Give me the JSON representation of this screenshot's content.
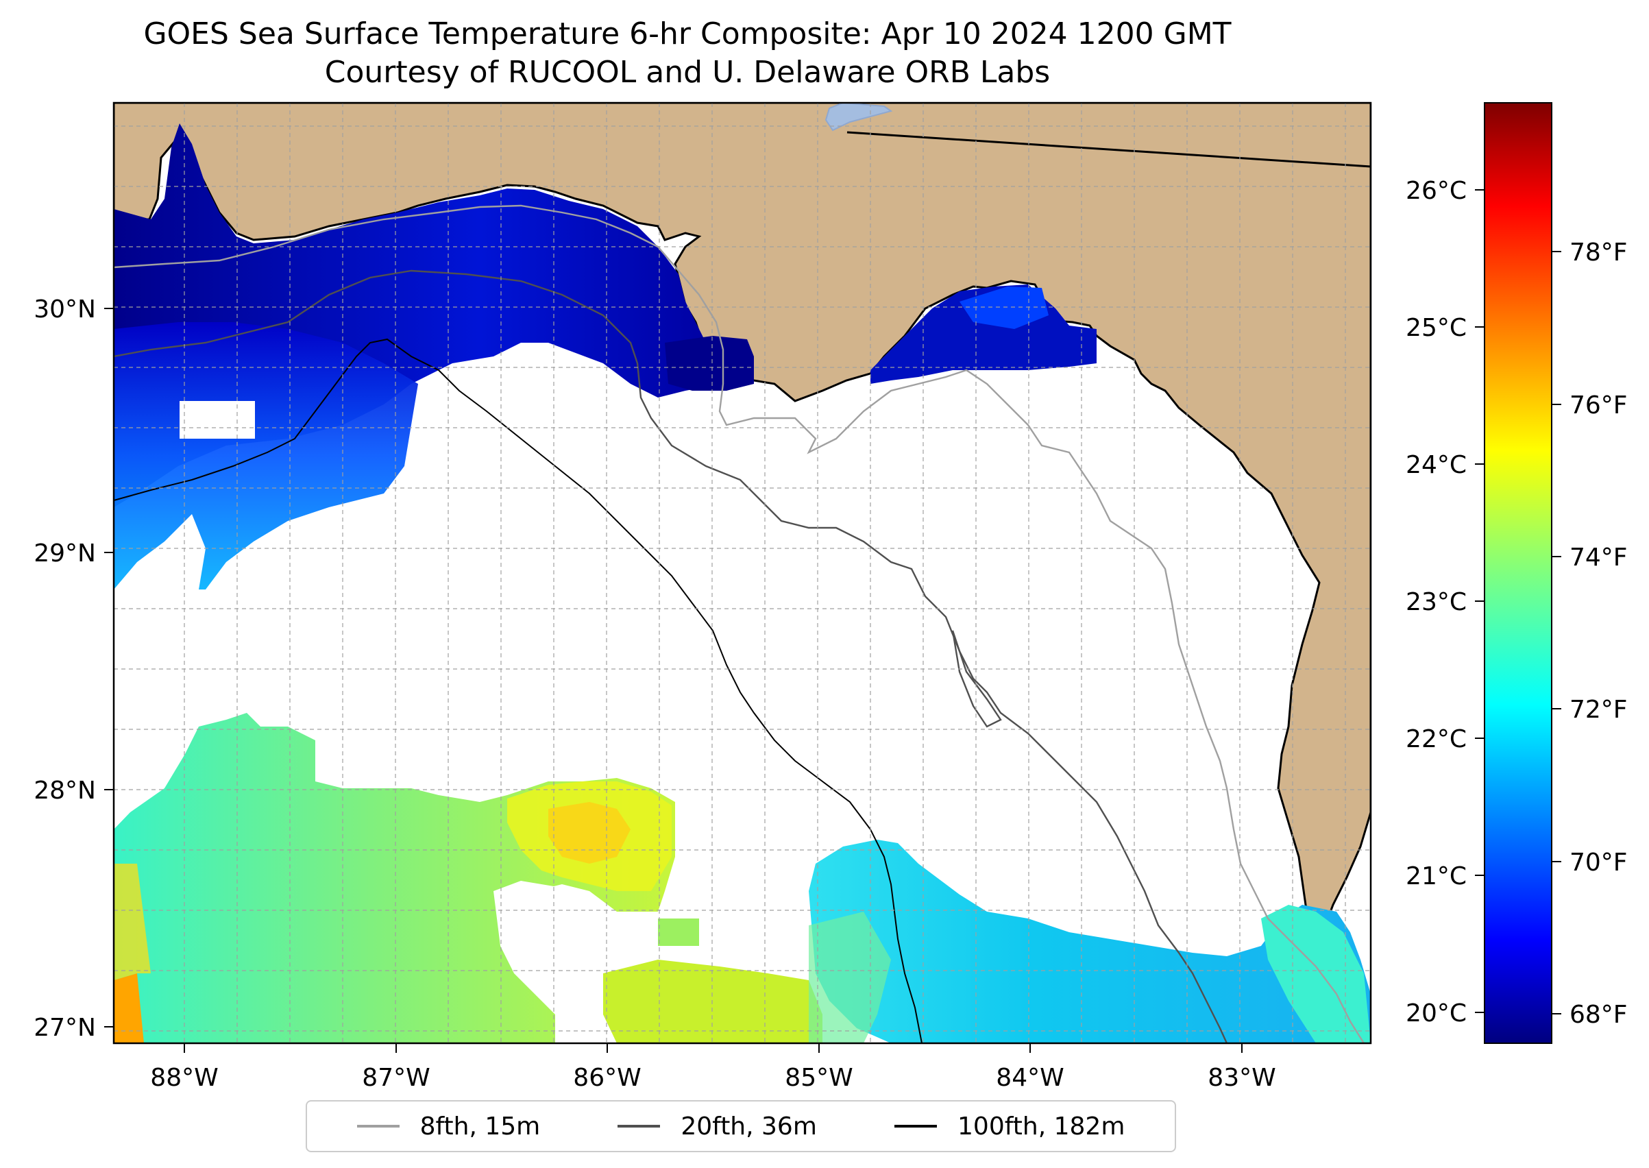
{
  "header": {
    "title_line1": "GOES Sea Surface Temperature 6-hr Composite: Apr 10 2024 1200 GMT",
    "title_line2": "Courtesy of RUCOOL and U. Delaware ORB Labs"
  },
  "map": {
    "lon_labels": [
      "88°W",
      "87°W",
      "86°W",
      "85°W",
      "84°W",
      "83°W"
    ],
    "lat_labels": [
      "30°N",
      "29°N",
      "28°N",
      "27°N"
    ],
    "land_color": "#d2b48c",
    "gridlines": "dashed"
  },
  "colorbar": {
    "celsius_labels": [
      "26°C",
      "25°C",
      "24°C",
      "23°C",
      "22°C",
      "21°C",
      "20°C"
    ],
    "fahrenheit_labels": [
      "78°F",
      "76°F",
      "74°F",
      "72°F",
      "70°F",
      "68°F"
    ],
    "colormap": "jet"
  },
  "legend": {
    "items": [
      {
        "label": "8fth, 15m",
        "color": "#a0a0a0"
      },
      {
        "label": "20fth, 36m",
        "color": "#505050"
      },
      {
        "label": "100fth, 182m",
        "color": "#000000"
      }
    ]
  }
}
